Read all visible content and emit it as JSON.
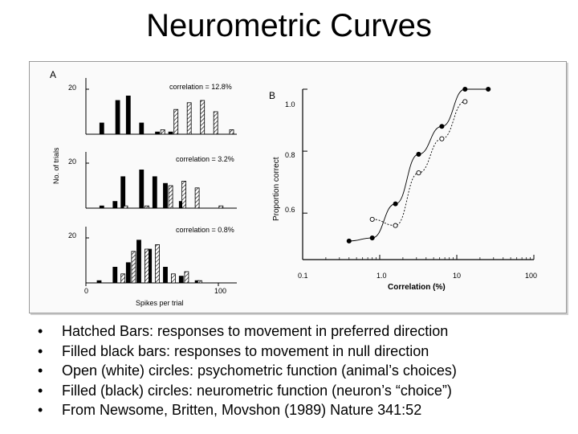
{
  "title": "Neurometric Curves",
  "figure": {
    "panel_a": {
      "label": "A",
      "ylabel": "No. of trials",
      "xlabel": "Spikes per trial",
      "y_tick": "20",
      "x_ticks": [
        "0",
        "100"
      ],
      "subplots": [
        {
          "annotation": "correlation = 12.8%"
        },
        {
          "annotation": "correlation = 3.2%"
        },
        {
          "annotation": "correlation = 0.8%"
        }
      ]
    },
    "panel_b": {
      "label": "B",
      "ylabel": "Proportion correct",
      "xlabel": "Correlation (%)",
      "y_ticks": [
        "1.0",
        "0.8",
        "0.6"
      ],
      "x_ticks": [
        "0.1",
        "1.0",
        "10",
        "100"
      ]
    }
  },
  "chart_data": [
    {
      "type": "bar",
      "panel": "A",
      "note": "three stacked histograms",
      "xlabel": "Spikes per trial",
      "ylabel": "No. of trials",
      "x_ticks": [
        0,
        100
      ],
      "xlim": [
        0,
        120
      ],
      "ylim": [
        0,
        25
      ],
      "subplots": [
        {
          "annotation": "correlation = 12.8%",
          "series": [
            {
              "name": "null (filled)",
              "fill": "filled",
              "x": [
                12,
                24,
                32,
                42,
                54,
                64
              ],
              "values": [
                5,
                15,
                17,
                5,
                1,
                1
              ]
            },
            {
              "name": "preferred (hatched)",
              "fill": "hatched",
              "x": [
                58,
                68,
                78,
                88,
                98,
                110
              ],
              "values": [
                2,
                11,
                14,
                15,
                10,
                2
              ]
            }
          ]
        },
        {
          "annotation": "correlation = 3.2%",
          "series": [
            {
              "name": "null (filled)",
              "fill": "filled",
              "x": [
                12,
                22,
                28,
                42,
                52,
                60,
                72
              ],
              "values": [
                1,
                3,
                14,
                17,
                14,
                11,
                3
              ]
            },
            {
              "name": "preferred (hatched)",
              "fill": "hatched",
              "x": [
                30,
                46,
                64,
                74,
                84,
                102
              ],
              "values": [
                1,
                1,
                10,
                12,
                9,
                1
              ]
            }
          ]
        },
        {
          "annotation": "correlation = 0.8%",
          "series": [
            {
              "name": "null (filled)",
              "fill": "filled",
              "x": [
                10,
                22,
                32,
                40,
                48,
                60,
                72,
                84
              ],
              "values": [
                1,
                7,
                9,
                19,
                15,
                7,
                3,
                1
              ]
            },
            {
              "name": "preferred (hatched)",
              "fill": "hatched",
              "x": [
                28,
                36,
                46,
                54,
                66,
                76,
                86
              ],
              "values": [
                4,
                14,
                15,
                17,
                4,
                5,
                1
              ]
            }
          ]
        }
      ]
    },
    {
      "type": "scatter",
      "panel": "B",
      "xlabel": "Correlation (%)",
      "ylabel": "Proportion correct",
      "x_scale": "log",
      "xlim": [
        0.1,
        100
      ],
      "ylim": [
        0.45,
        1.0
      ],
      "x_ticks": [
        0.1,
        1.0,
        10,
        100
      ],
      "y_ticks": [
        0.6,
        0.8,
        1.0
      ],
      "series": [
        {
          "name": "neurometric (filled circles)",
          "marker": "filled",
          "line": "solid",
          "x": [
            0.4,
            0.8,
            1.6,
            3.2,
            6.4,
            12.8,
            25.6
          ],
          "y": [
            0.51,
            0.52,
            0.63,
            0.79,
            0.88,
            1.0,
            1.0
          ]
        },
        {
          "name": "psychometric (open circles)",
          "marker": "open",
          "line": "dotted",
          "x": [
            0.8,
            1.6,
            3.2,
            6.4,
            12.8
          ],
          "y": [
            0.58,
            0.56,
            0.73,
            0.84,
            0.96
          ]
        }
      ]
    }
  ],
  "bullets": [
    "Hatched Bars: responses to movement in preferred direction",
    "Filled black bars: responses to movement in null direction",
    "Open (white) circles: psychometric function (animal’s choices)",
    "Filled (black) circles: neurometric function (neuron’s “choice”)",
    "From Newsome, Britten, Movshon (1989) Nature 341:52"
  ],
  "bullet_symbol": "•"
}
